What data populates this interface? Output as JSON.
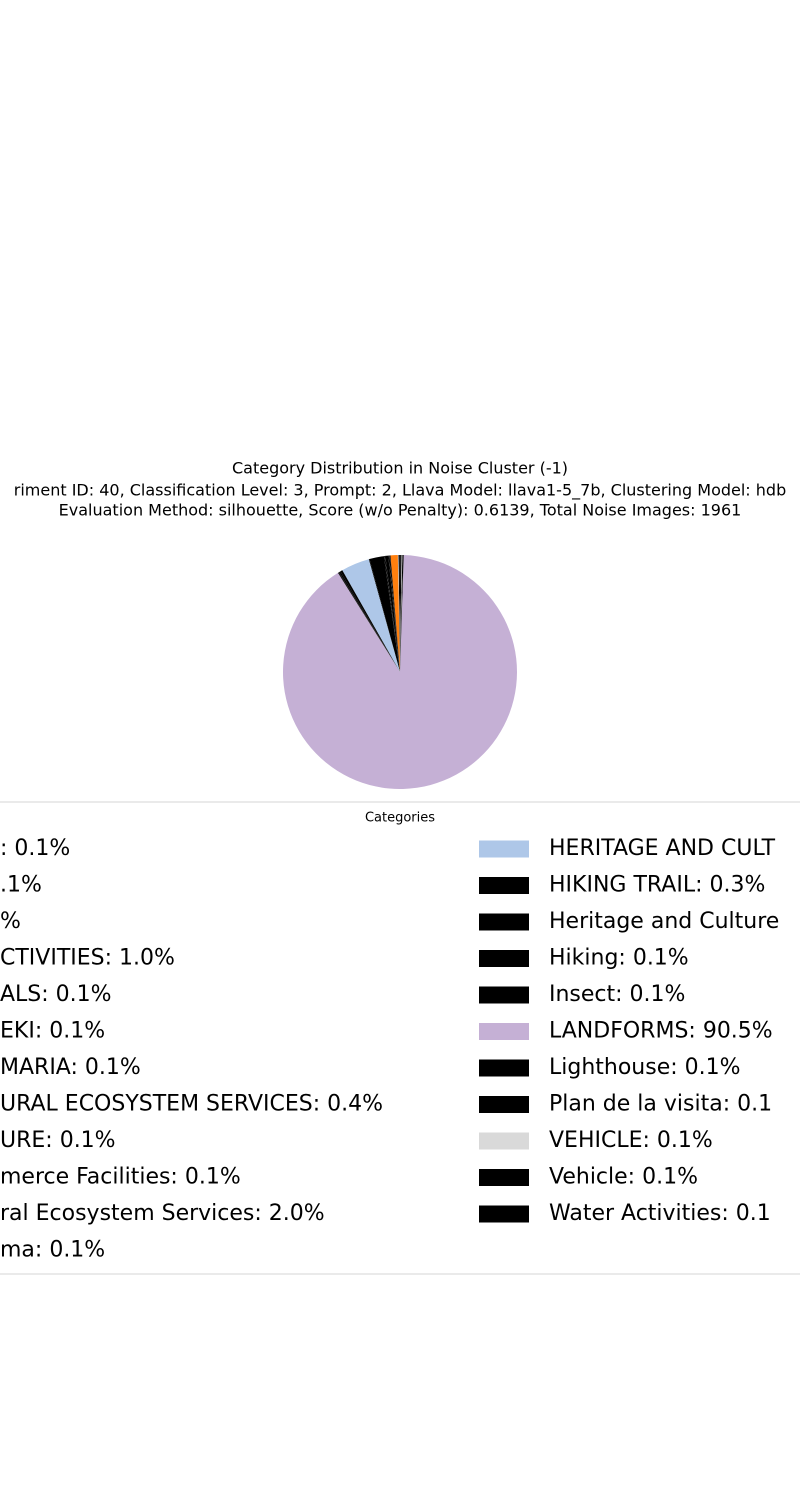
{
  "chart_data": {
    "type": "pie",
    "title": "Category Distribution in Noise Cluster (-1)",
    "subtitle": [
      "riment ID: 40, Classification Level: 3, Prompt: 2, Llava Model: llava1-5_7b, Clustering Model: hdb",
      "Evaluation Method: silhouette, Score (w/o Penalty): 0.6139, Total Noise Images: 1961"
    ],
    "legend_title": "Categories",
    "categories": [
      ": 0.1%",
      ".1%",
      "%",
      "CTIVITIES: 1.0%",
      "ALS: 0.1%",
      "EKI: 0.1%",
      "MARIA: 0.1%",
      "URAL ECOSYSTEM SERVICES: 0.4%",
      "URE: 0.1%",
      "merce Facilities: 0.1%",
      "ral Ecosystem Services: 2.0%",
      "ma: 0.1%",
      "HERITAGE AND CULT",
      "HIKING TRAIL: 0.3%",
      "Heritage and Culture",
      "Hiking: 0.1%",
      "Insect: 0.1%",
      "LANDFORMS: 90.5%",
      "Lighthouse: 0.1%",
      "Plan de la visita: 0.1",
      "VEHICLE: 0.1%",
      "Vehicle: 0.1%",
      "Water Activities: 0.1"
    ],
    "values": [
      0.1,
      0.1,
      0.1,
      1.0,
      0.1,
      0.1,
      0.1,
      0.4,
      0.1,
      0.1,
      2.0,
      0.1,
      3.9,
      0.3,
      0.2,
      0.1,
      0.1,
      90.5,
      0.1,
      0.1,
      0.1,
      0.1,
      0.1
    ],
    "colors": [
      "#000000",
      "#000000",
      "#c7c7c7",
      "#ff7f0e",
      "#000000",
      "#000000",
      "#000000",
      "#000000",
      "#000000",
      "#000000",
      "#000000",
      "#000000",
      "#aec7e8",
      "#000000",
      "#000000",
      "#000000",
      "#000000",
      "#c5b0d5",
      "#000000",
      "#000000",
      "#d9d9d9",
      "#000000",
      "#000000"
    ]
  }
}
